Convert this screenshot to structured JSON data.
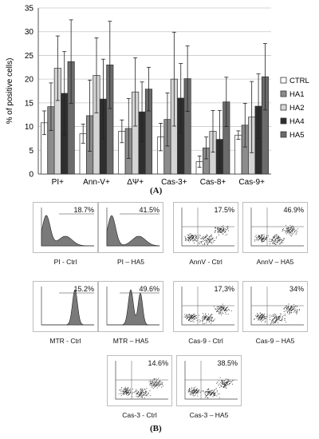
{
  "panel_a_label": "(A)",
  "panel_b_label": "(B)",
  "chart_data": {
    "type": "bar",
    "ylabel": "% of positive cells)",
    "ylim": [
      0,
      35
    ],
    "yticks": [
      0,
      5,
      10,
      15,
      20,
      25,
      30,
      35
    ],
    "grid": true,
    "legend_position": "right",
    "categories": [
      "PI+",
      "Ann-V+",
      "ΔΨ+",
      "Cas-3+",
      "Cas-8+",
      "Cas-9+"
    ],
    "series": [
      {
        "name": "CTRL",
        "color": "#ffffff",
        "values": [
          10.8,
          8.5,
          9.0,
          7.8,
          2.6,
          8.2
        ],
        "errors": [
          2.5,
          2.0,
          2.4,
          2.9,
          1.2,
          0.9
        ]
      },
      {
        "name": "HA1",
        "color": "#8c8c8c",
        "values": [
          14.2,
          12.3,
          9.6,
          11.5,
          5.5,
          10.3
        ],
        "errors": [
          5.0,
          7.5,
          6.3,
          5.6,
          2.3,
          4.6
        ]
      },
      {
        "name": "HA2",
        "color": "#d4d4d4",
        "values": [
          22.3,
          20.8,
          17.3,
          20.0,
          9.0,
          12.0
        ],
        "errors": [
          6.8,
          7.9,
          7.2,
          9.9,
          4.4,
          7.5
        ]
      },
      {
        "name": "HA4",
        "color": "#2e2e2e",
        "values": [
          17.0,
          15.8,
          13.1,
          16.0,
          7.3,
          14.3
        ],
        "errors": [
          8.8,
          8.4,
          6.3,
          7.3,
          6.1,
          6.8
        ]
      },
      {
        "name": "HA5",
        "color": "#6b6b6b",
        "values": [
          23.7,
          23.0,
          17.9,
          20.1,
          15.2,
          20.5
        ],
        "errors": [
          8.8,
          9.2,
          4.6,
          6.9,
          5.2,
          7.0
        ]
      }
    ]
  },
  "flow_panels": [
    {
      "caption": "PI - Ctrl",
      "percent": "18.7%",
      "kind": "histogram"
    },
    {
      "caption": "PI – HA5",
      "percent": "41.5%",
      "kind": "histogram"
    },
    {
      "caption": "AnnV - Ctrl",
      "percent": "17.5%",
      "kind": "scatter"
    },
    {
      "caption": "AnnV – HA5",
      "percent": "46.9%",
      "kind": "scatter"
    },
    {
      "caption": "MTR - Ctrl",
      "percent": "15.2%",
      "kind": "histogram"
    },
    {
      "caption": "MTR – HA5",
      "percent": "49.6%",
      "kind": "histogram"
    },
    {
      "caption": "Cas-9 - Ctrl",
      "percent": "17,3%",
      "kind": "scatter"
    },
    {
      "caption": "Cas-9 – HA5",
      "percent": "34%",
      "kind": "scatter"
    },
    {
      "caption": "Cas-3 - Ctrl",
      "percent": "14.6%",
      "kind": "scatter"
    },
    {
      "caption": "Cas-3 – HA5",
      "percent": "38.5%",
      "kind": "scatter"
    }
  ]
}
